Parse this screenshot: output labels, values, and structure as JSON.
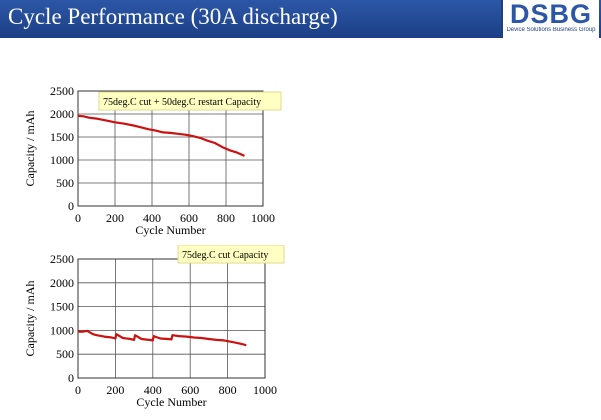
{
  "header": {
    "title": "Cycle Performance (30A discharge)",
    "logo_text": "DSBG",
    "logo_subtitle": "Device Solutions Business Group",
    "background_color": "#1c3f86"
  },
  "chart_data": [
    {
      "type": "line",
      "xlabel": "Cycle Number",
      "ylabel": "Capacity / mAh",
      "xlim": [
        0,
        1000
      ],
      "ylim": [
        0,
        2500
      ],
      "xticks": [
        "0",
        "200",
        "400",
        "600",
        "800",
        "1000"
      ],
      "yticks": [
        "0",
        "500",
        "1000",
        "1500",
        "2000",
        "2500"
      ],
      "grid": true,
      "annotation": "75deg.C cut + 50deg.C restart Capacity",
      "series": [
        {
          "color": "#cc1111",
          "x": [
            0,
            30,
            60,
            100,
            150,
            200,
            250,
            300,
            340,
            380,
            420,
            460,
            500,
            540,
            580,
            620,
            660,
            700,
            740,
            780,
            820,
            860,
            900
          ],
          "y": [
            1960,
            1950,
            1920,
            1900,
            1860,
            1820,
            1790,
            1750,
            1710,
            1670,
            1640,
            1600,
            1590,
            1570,
            1550,
            1520,
            1480,
            1420,
            1370,
            1280,
            1210,
            1160,
            1090
          ]
        }
      ]
    },
    {
      "type": "line",
      "xlabel": "Cycle Number",
      "ylabel": "Capacity / mAh",
      "xlim": [
        0,
        1000
      ],
      "ylim": [
        0,
        2500
      ],
      "xticks": [
        "0",
        "200",
        "400",
        "600",
        "800",
        "1000"
      ],
      "yticks": [
        "0",
        "500",
        "1000",
        "1500",
        "2000",
        "2500"
      ],
      "grid": true,
      "annotation": "75deg.C cut Capacity",
      "series": [
        {
          "color": "#cc1111",
          "x": [
            0,
            20,
            50,
            80,
            100,
            140,
            180,
            200,
            205,
            240,
            280,
            300,
            305,
            340,
            380,
            400,
            405,
            440,
            480,
            500,
            505,
            540,
            580,
            620,
            660,
            700,
            740,
            780,
            820,
            860,
            900
          ],
          "y": [
            980,
            970,
            990,
            920,
            900,
            870,
            850,
            830,
            920,
            840,
            820,
            800,
            900,
            820,
            800,
            790,
            880,
            830,
            820,
            810,
            900,
            880,
            870,
            850,
            840,
            820,
            800,
            790,
            760,
            730,
            690
          ]
        }
      ]
    }
  ]
}
